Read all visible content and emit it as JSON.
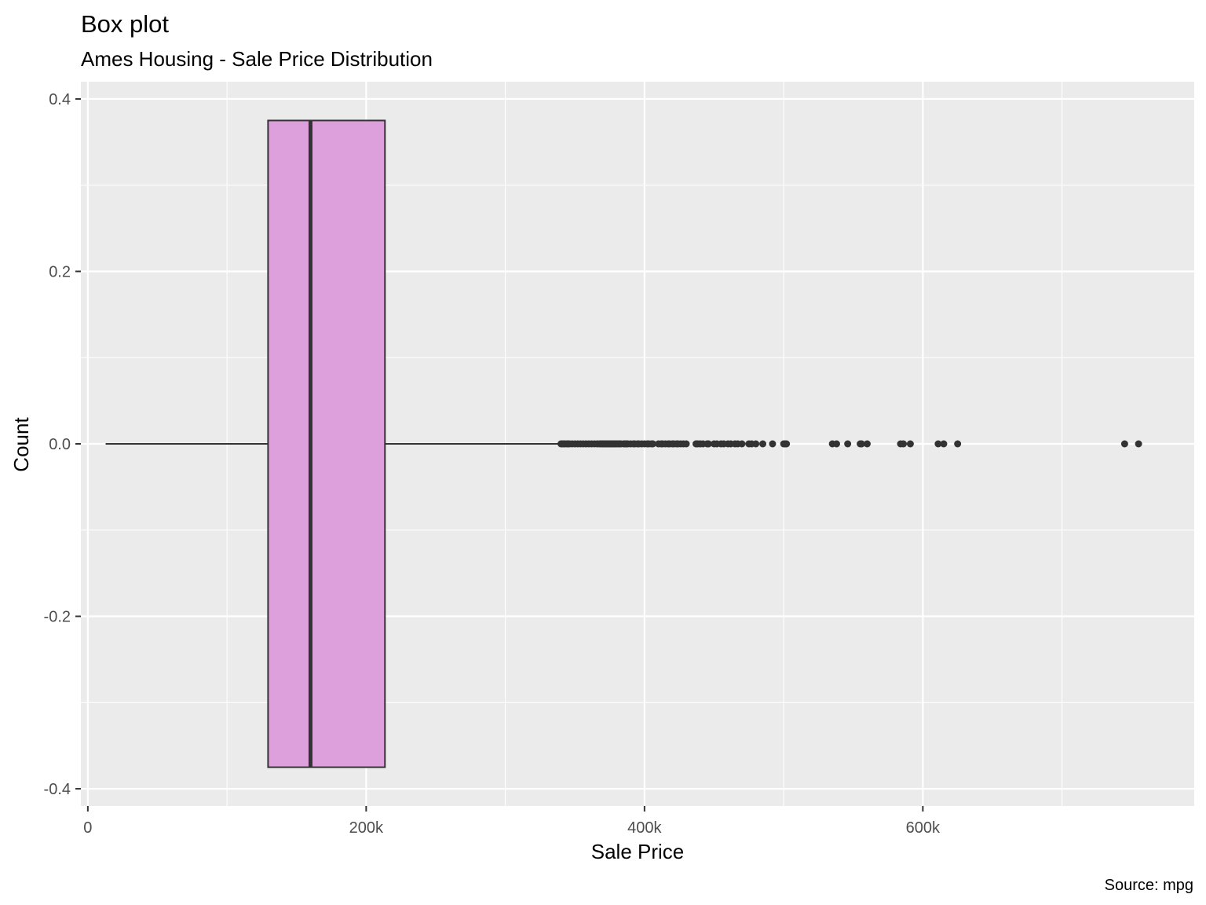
{
  "chart_data": {
    "type": "box",
    "title": "Box plot",
    "subtitle": "Ames Housing - Sale Price Distribution",
    "xlabel": "Sale Price",
    "ylabel": "Count",
    "caption": "Source: mpg",
    "xlim": [
      -5000,
      795000
    ],
    "ylim": [
      -0.42,
      0.42
    ],
    "x_ticks": [
      {
        "value": 0,
        "label": "0"
      },
      {
        "value": 200000,
        "label": "200k"
      },
      {
        "value": 400000,
        "label": "400k"
      },
      {
        "value": 600000,
        "label": "600k"
      }
    ],
    "y_ticks": [
      {
        "value": -0.4,
        "label": "-0.4"
      },
      {
        "value": -0.2,
        "label": "-0.2"
      },
      {
        "value": 0.0,
        "label": "0.0"
      },
      {
        "value": 0.2,
        "label": "0.2"
      },
      {
        "value": 0.4,
        "label": "0.4"
      }
    ],
    "grid": true,
    "box": {
      "min": 12789,
      "q1": 129500,
      "median": 160000,
      "q3": 213500,
      "whisker_high": 339750,
      "box_half_height": 0.375,
      "fill": "#DDA0DD",
      "stroke": "#333333"
    },
    "outliers": [
      340000,
      341000,
      342000,
      343000,
      344500,
      345000,
      346000,
      348000,
      350000,
      352000,
      354000,
      356000,
      358000,
      360000,
      362000,
      364000,
      366000,
      368000,
      369000,
      370000,
      371000,
      372000,
      373000,
      374000,
      375000,
      376000,
      377000,
      378000,
      379000,
      380000,
      381000,
      382000,
      383000,
      385000,
      386000,
      387000,
      388000,
      390000,
      392000,
      393000,
      395000,
      396000,
      398000,
      400000,
      402000,
      403000,
      405000,
      406000,
      410000,
      412000,
      413000,
      415000,
      417000,
      418000,
      420000,
      421000,
      423000,
      424000,
      426000,
      428000,
      430000,
      437000,
      438000,
      440000,
      442000,
      445000,
      446000,
      450000,
      452000,
      455000,
      457000,
      460000,
      462000,
      465000,
      467000,
      470000,
      475000,
      477000,
      480000,
      485000,
      492000,
      500000,
      501000,
      502000,
      535000,
      538000,
      546000,
      555000,
      556000,
      560000,
      584000,
      586000,
      591000,
      611000,
      615000,
      625000,
      745000,
      755000
    ],
    "colors": {
      "panel": "#EBEBEB",
      "grid": "#FFFFFF",
      "outlier": "#333333"
    }
  }
}
